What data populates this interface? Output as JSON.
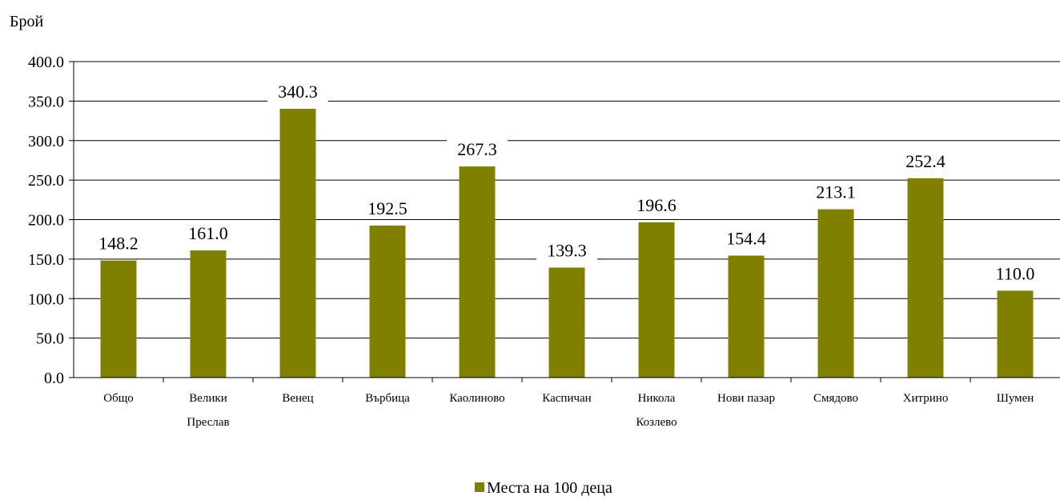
{
  "chart_data": {
    "type": "bar",
    "ylabel": "Брой",
    "categories": [
      [
        "Общо"
      ],
      [
        "Велики",
        "Преслав"
      ],
      [
        "Венец"
      ],
      [
        "Върбица"
      ],
      [
        "Каолиново"
      ],
      [
        "Каспичан"
      ],
      [
        "Никола",
        "Козлево"
      ],
      [
        "Нови пазар"
      ],
      [
        "Смядово"
      ],
      [
        "Хитрино"
      ],
      [
        "Шумен"
      ]
    ],
    "series": [
      {
        "name": "Места на 100 деца",
        "values": [
          148.2,
          161.0,
          340.3,
          192.5,
          267.3,
          139.3,
          196.6,
          154.4,
          213.1,
          252.4,
          110.0
        ],
        "color": "#808000"
      }
    ],
    "ylim": [
      0,
      400
    ],
    "ytick_step": 50,
    "grid": true,
    "legend_position": "bottom-center"
  }
}
